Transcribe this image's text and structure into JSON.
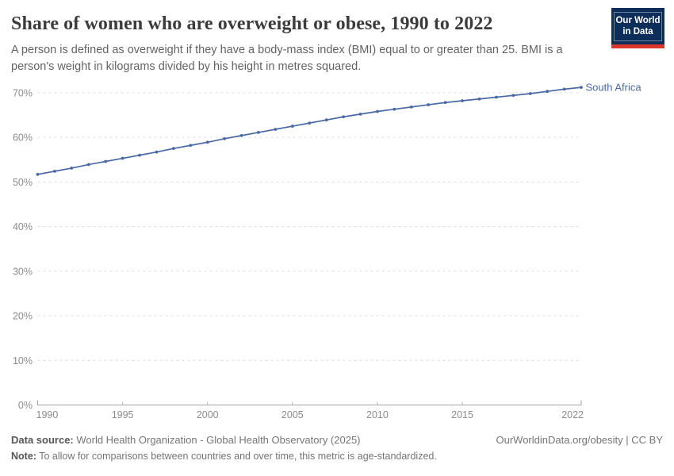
{
  "header": {
    "title": "Share of women who are overweight or obese, 1990 to 2022",
    "subtitle": "A person is defined as overweight if they have a body-mass index (BMI) equal to or greater than 25. BMI is a person's weight in kilograms divided by his height in metres squared.",
    "logo": {
      "line1": "Our World",
      "line2": "in Data",
      "bg_color": "#0d2e5a",
      "bar_color": "#dc352c"
    }
  },
  "chart_data": {
    "type": "line",
    "title": "Share of women who are overweight or obese, 1990 to 2022",
    "xlabel": "",
    "ylabel": "",
    "x": [
      1990,
      1991,
      1992,
      1993,
      1994,
      1995,
      1996,
      1997,
      1998,
      1999,
      2000,
      2001,
      2002,
      2003,
      2004,
      2005,
      2006,
      2007,
      2008,
      2009,
      2010,
      2011,
      2012,
      2013,
      2014,
      2015,
      2016,
      2017,
      2018,
      2019,
      2020,
      2021,
      2022
    ],
    "series": [
      {
        "name": "South Africa",
        "color": "#4a69a3",
        "values": [
          51.7,
          52.4,
          53.1,
          53.9,
          54.6,
          55.3,
          56.0,
          56.7,
          57.5,
          58.2,
          58.9,
          59.7,
          60.4,
          61.1,
          61.8,
          62.5,
          63.2,
          63.9,
          64.6,
          65.2,
          65.8,
          66.3,
          66.8,
          67.3,
          67.8,
          68.2,
          68.6,
          69.0,
          69.4,
          69.8,
          70.3,
          70.8,
          71.2
        ]
      }
    ],
    "ylim": [
      0,
      70
    ],
    "yticks": [
      0,
      10,
      20,
      30,
      40,
      50,
      60,
      70
    ],
    "ytick_format": "{v}%",
    "xticks": [
      1990,
      1995,
      2000,
      2005,
      2010,
      2015,
      2022
    ],
    "grid": "horizontal-dashed",
    "legend_position": "end-of-line-label"
  },
  "footer": {
    "source_label": "Data source:",
    "source_text": " World Health Organization - Global Health Observatory (2025)",
    "link_text": "OurWorldinData.org/obesity | CC BY",
    "note_label": "Note:",
    "note_text": " To allow for comparisons between countries and over time, this metric is age-standardized."
  }
}
